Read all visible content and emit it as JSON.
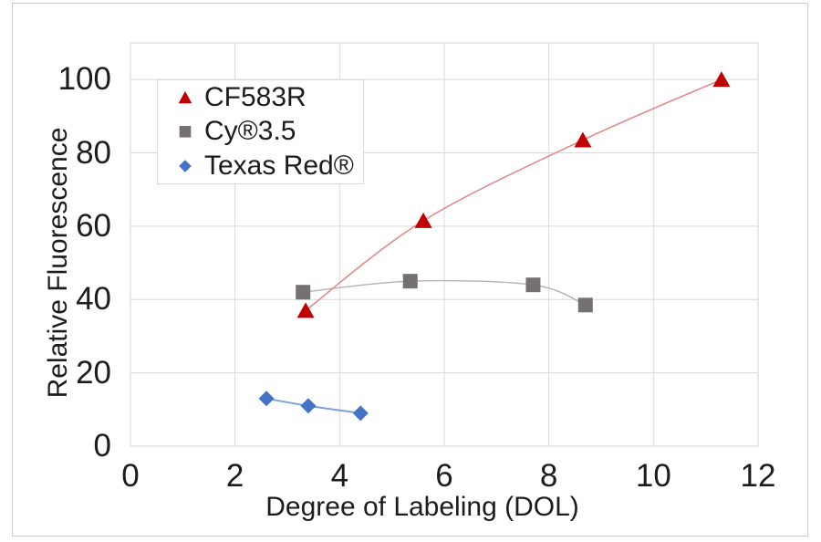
{
  "chart_data": {
    "type": "scatter",
    "title": "",
    "xlabel": "Degree of Labeling (DOL)",
    "ylabel": "Relative Fluorescence",
    "xlim": [
      0,
      12
    ],
    "ylim": [
      0,
      110
    ],
    "x_ticks": [
      0,
      2,
      4,
      6,
      8,
      10,
      12
    ],
    "y_ticks": [
      0,
      20,
      40,
      60,
      80,
      100
    ],
    "grid": true,
    "grid_color": "#d9d9d9",
    "plot_border_color": "#d6d6d6",
    "text_color": "#1c1c1c",
    "legend_position": "top-left-inside",
    "legend_border_color": "#d9d9d9",
    "series": [
      {
        "name": "CF583R",
        "marker": "triangle",
        "color": "#c00000",
        "line_color": "#e28a8a",
        "line_width": 1.6,
        "points": [
          [
            3.35,
            37
          ],
          [
            5.6,
            61.5
          ],
          [
            8.65,
            83.5
          ],
          [
            11.3,
            100
          ]
        ]
      },
      {
        "name": "Cy®3.5",
        "marker": "square",
        "color": "#767171",
        "line_color": "#b5b2b2",
        "line_width": 1.4,
        "points": [
          [
            3.3,
            42
          ],
          [
            5.35,
            45
          ],
          [
            7.7,
            44
          ],
          [
            8.7,
            38.5
          ]
        ]
      },
      {
        "name": "Texas Red®",
        "marker": "diamond",
        "color": "#4472c4",
        "line_color": "#7da2d6",
        "line_width": 2,
        "points": [
          [
            2.6,
            13
          ],
          [
            3.4,
            11
          ],
          [
            4.4,
            9
          ]
        ]
      }
    ]
  }
}
